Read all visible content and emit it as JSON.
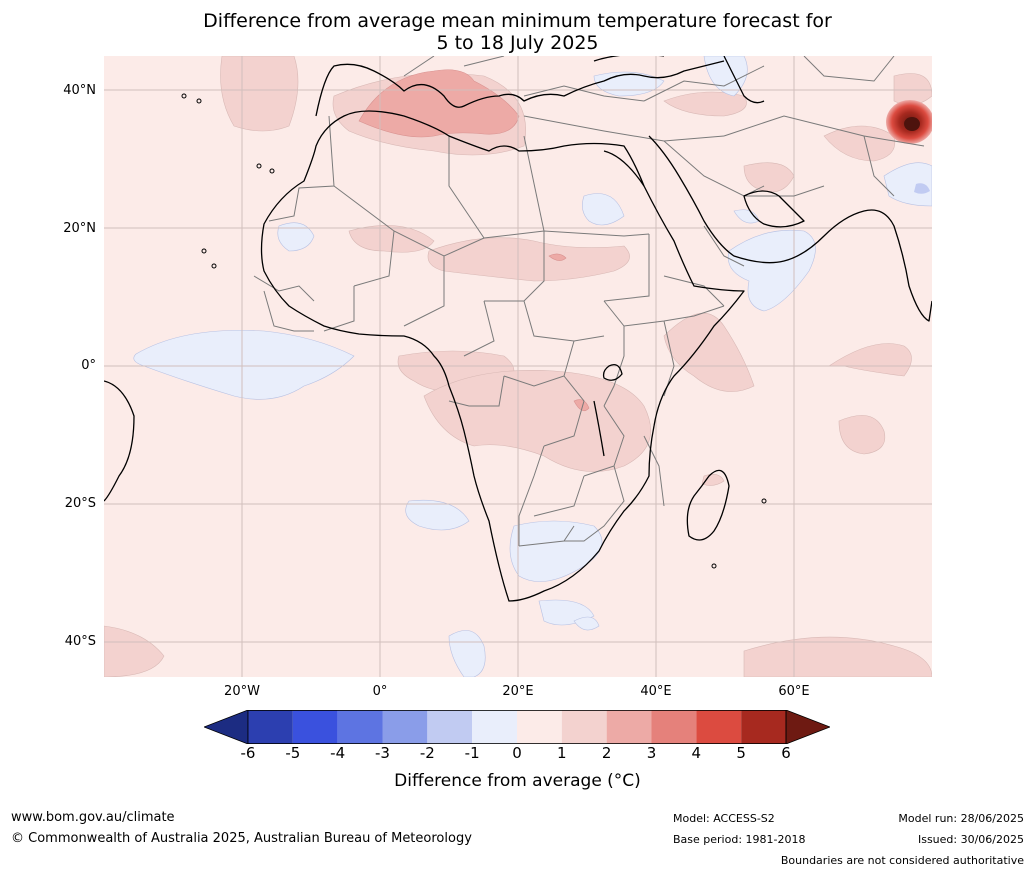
{
  "title": {
    "line1": "Difference from average mean minimum temperature forecast for",
    "line2": "5 to 18 July 2025"
  },
  "map": {
    "region": "Africa",
    "latitude_labels": [
      "40°N",
      "20°N",
      "0°",
      "20°S",
      "40°S"
    ],
    "longitude_labels": [
      "20°W",
      "0°",
      "20°E",
      "40°E",
      "60°E"
    ],
    "extent": {
      "lon": [
        -40,
        80
      ],
      "lat": [
        -45,
        45
      ]
    }
  },
  "colorbar": {
    "ticks": [
      "-6",
      "-5",
      "-4",
      "-3",
      "-2",
      "-1",
      "0",
      "1",
      "2",
      "3",
      "4",
      "5",
      "6"
    ],
    "colors": [
      "#1c2c82",
      "#2c3fb0",
      "#3a51de",
      "#5d74e2",
      "#8a9de9",
      "#c1cbf2",
      "#e9eefb",
      "#fcebe8",
      "#f3d2cf",
      "#edaaa6",
      "#e5817b",
      "#dc4b40",
      "#a7291f",
      "#6e1a12"
    ],
    "label": "Difference from average (°C)"
  },
  "footer": {
    "website": "www.bom.gov.au/climate",
    "copyright": "© Commonwealth of Australia 2025, Australian Bureau of Meteorology",
    "model": "Model: ACCESS-S2",
    "base_period": "Base period: 1981-2018",
    "model_run": "Model run: 28/06/2025",
    "issued": "Issued: 30/06/2025",
    "disclaimer": "Boundaries are not considered authoritative"
  }
}
